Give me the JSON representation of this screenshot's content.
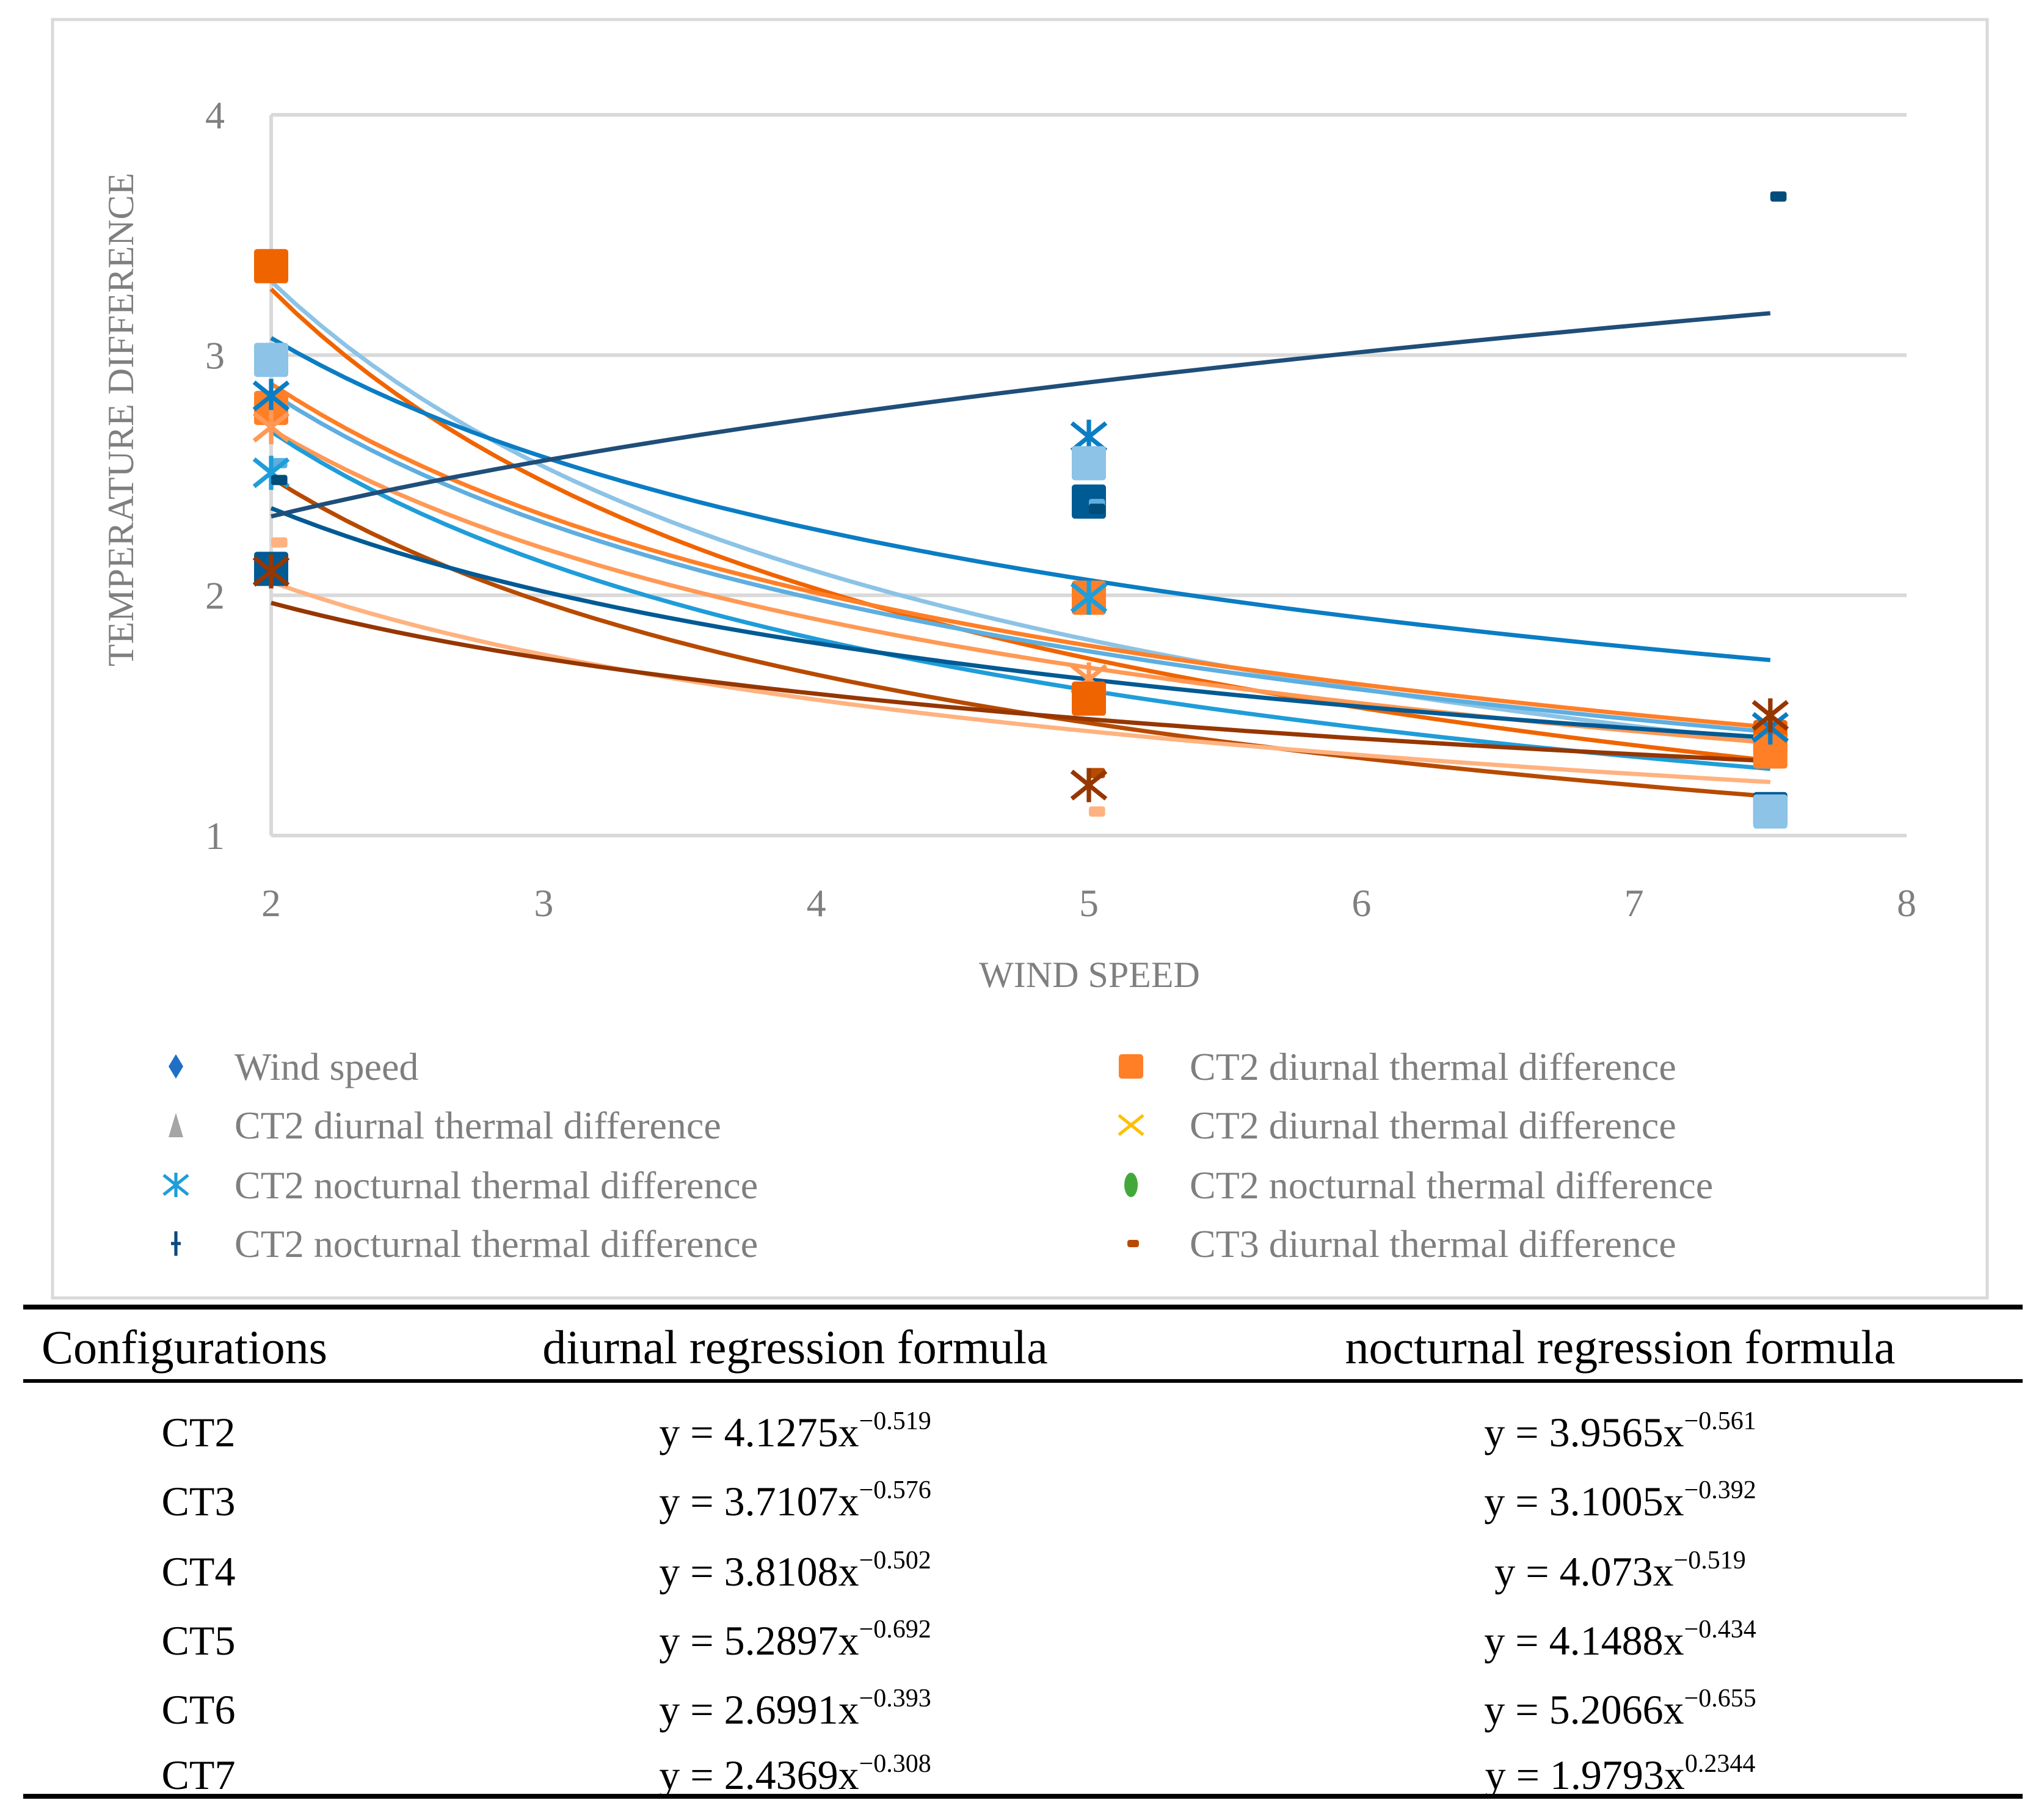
{
  "chart_data": {
    "type": "scatter",
    "xlabel": "WIND SPEED",
    "ylabel": "TEMPERATURE DIFFERENCE",
    "xlim": [
      2,
      8
    ],
    "ylim": [
      1,
      4
    ],
    "x_ticks": [
      "2",
      "3",
      "4",
      "5",
      "6",
      "7",
      "8"
    ],
    "y_ticks": [
      "1",
      "2",
      "3",
      "4"
    ],
    "grid": "horizontal",
    "legend_position": "bottom",
    "legend": [
      {
        "label": "Wind speed",
        "shape": "diamond",
        "color": "#1f6fc5"
      },
      {
        "label": "CT2 diurnal thermal difference",
        "shape": "triangle",
        "color": "#a5a5a5"
      },
      {
        "label": "CT2 nocturnal thermal difference",
        "shape": "star",
        "color": "#1f9dd9"
      },
      {
        "label": "CT2 nocturnal thermal difference",
        "shape": "plus",
        "color": "#0b4a80"
      },
      {
        "label": "CT2 diurnal thermal difference",
        "shape": "square",
        "color": "#ff7f27"
      },
      {
        "label": "CT2 diurnal thermal difference",
        "shape": "x",
        "color": "#ffc000"
      },
      {
        "label": "CT2 nocturnal thermal difference",
        "shape": "circle",
        "color": "#43a83b"
      },
      {
        "label": "CT3 diurnal thermal difference",
        "shape": "dash",
        "color": "#b84a00"
      }
    ],
    "points": [
      {
        "x": 2,
        "y": 3.37,
        "shape": "square",
        "color": "#f06400"
      },
      {
        "x": 2,
        "y": 2.98,
        "shape": "square",
        "color": "#8cc3e6"
      },
      {
        "x": 2,
        "y": 2.78,
        "shape": "square",
        "color": "#ff7f27"
      },
      {
        "x": 2,
        "y": 2.83,
        "shape": "star",
        "color": "#0a7dc4"
      },
      {
        "x": 2,
        "y": 2.7,
        "shape": "star",
        "color": "#ff9955"
      },
      {
        "x": 2,
        "y": 2.55,
        "shape": "dash",
        "color": "#5eaee0"
      },
      {
        "x": 2,
        "y": 2.51,
        "shape": "star",
        "color": "#1f9dd9"
      },
      {
        "x": 2,
        "y": 2.48,
        "shape": "dash",
        "color": "#004c7a"
      },
      {
        "x": 2,
        "y": 2.22,
        "shape": "dash",
        "color": "#ffb27f"
      },
      {
        "x": 2,
        "y": 2.11,
        "shape": "square",
        "color": "#005a94"
      },
      {
        "x": 2,
        "y": 2.1,
        "shape": "star",
        "color": "#963600"
      },
      {
        "x": 5,
        "y": 2.66,
        "shape": "star",
        "color": "#0a7dc4"
      },
      {
        "x": 5,
        "y": 2.55,
        "shape": "square",
        "color": "#8cc3e6"
      },
      {
        "x": 5,
        "y": 2.39,
        "shape": "square",
        "color": "#005a94"
      },
      {
        "x": 5,
        "y": 2.38,
        "shape": "dash",
        "color": "#5eaee0"
      },
      {
        "x": 5,
        "y": 2.36,
        "shape": "dash",
        "color": "#004c7a"
      },
      {
        "x": 5,
        "y": 1.99,
        "shape": "square",
        "color": "#ff7f27"
      },
      {
        "x": 5,
        "y": 1.99,
        "shape": "star",
        "color": "#1f9dd9"
      },
      {
        "x": 5,
        "y": 1.65,
        "shape": "star",
        "color": "#ff9955"
      },
      {
        "x": 5,
        "y": 1.57,
        "shape": "square",
        "color": "#f06400"
      },
      {
        "x": 5,
        "y": 1.26,
        "shape": "dash",
        "color": "#b84a00"
      },
      {
        "x": 5,
        "y": 1.21,
        "shape": "star",
        "color": "#963600"
      },
      {
        "x": 5,
        "y": 1.1,
        "shape": "dash",
        "color": "#ffb27f"
      },
      {
        "x": 7.5,
        "y": 3.66,
        "shape": "dash",
        "color": "#004c7a"
      },
      {
        "x": 7.5,
        "y": 1.11,
        "shape": "square",
        "color": "#005a94"
      },
      {
        "x": 7.5,
        "y": 1.1,
        "shape": "square",
        "color": "#8cc3e6"
      },
      {
        "x": 7.5,
        "y": 1.41,
        "shape": "square",
        "color": "#f06400"
      },
      {
        "x": 7.5,
        "y": 1.35,
        "shape": "square",
        "color": "#ff7f27"
      },
      {
        "x": 7.5,
        "y": 1.45,
        "shape": "star",
        "color": "#0a7dc4"
      },
      {
        "x": 7.5,
        "y": 1.5,
        "shape": "star",
        "color": "#963600"
      }
    ],
    "trendlines": [
      {
        "type": "power",
        "a": 5.2066,
        "b": -0.655,
        "color": "#8cc3e6"
      },
      {
        "type": "power",
        "a": 5.2897,
        "b": -0.692,
        "color": "#f06400"
      },
      {
        "type": "power",
        "a": 4.1488,
        "b": -0.434,
        "color": "#0a7dc4"
      },
      {
        "type": "power",
        "a": 4.1275,
        "b": -0.519,
        "color": "#ff7f27"
      },
      {
        "type": "power",
        "a": 4.073,
        "b": -0.519,
        "color": "#5eaee0"
      },
      {
        "type": "power",
        "a": 3.8108,
        "b": -0.502,
        "color": "#ff9955"
      },
      {
        "type": "power",
        "a": 3.9565,
        "b": -0.561,
        "color": "#1f9dd9"
      },
      {
        "type": "power",
        "a": 3.7107,
        "b": -0.576,
        "color": "#b84a00"
      },
      {
        "type": "power",
        "a": 3.1005,
        "b": -0.392,
        "color": "#005a94"
      },
      {
        "type": "power",
        "a": 1.9793,
        "b": 0.2344,
        "color": "#1f4e79"
      },
      {
        "type": "power",
        "a": 2.6991,
        "b": -0.393,
        "color": "#ffb27f"
      },
      {
        "type": "power",
        "a": 2.4369,
        "b": -0.308,
        "color": "#963600"
      }
    ]
  },
  "table": {
    "headers": [
      "Configurations",
      "diurnal regression formula",
      "nocturnal regression formula"
    ],
    "rows": [
      {
        "config": "CT2",
        "diurnal": {
          "base": "y = 4.1275x",
          "exp": "−0.519"
        },
        "nocturnal": {
          "base": "y = 3.9565x",
          "exp": "−0.561"
        }
      },
      {
        "config": "CT3",
        "diurnal": {
          "base": "y = 3.7107x",
          "exp": "−0.576"
        },
        "nocturnal": {
          "base": "y = 3.1005x",
          "exp": "−0.392"
        }
      },
      {
        "config": "CT4",
        "diurnal": {
          "base": "y = 3.8108x",
          "exp": "−0.502"
        },
        "nocturnal": {
          "base": "y = 4.073x",
          "exp": "−0.519"
        }
      },
      {
        "config": "CT5",
        "diurnal": {
          "base": "y = 5.2897x",
          "exp": "−0.692"
        },
        "nocturnal": {
          "base": "y = 4.1488x",
          "exp": "−0.434"
        }
      },
      {
        "config": "CT6",
        "diurnal": {
          "base": "y = 2.6991x",
          "exp": "−0.393"
        },
        "nocturnal": {
          "base": "y = 5.2066x",
          "exp": "−0.655"
        }
      },
      {
        "config": "CT7",
        "diurnal": {
          "base": "y = 2.4369x",
          "exp": "−0.308"
        },
        "nocturnal": {
          "base": "y = 1.9793x",
          "exp": "0.2344"
        }
      }
    ]
  }
}
